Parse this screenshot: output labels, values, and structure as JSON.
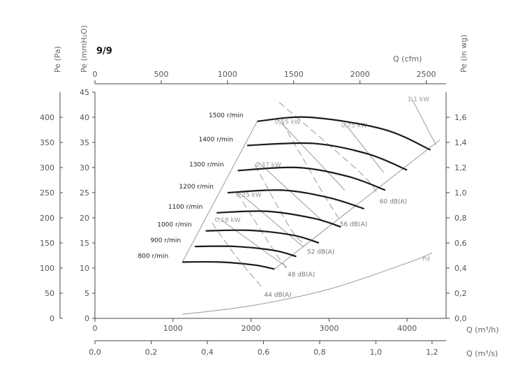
{
  "chart_data": {
    "type": "line",
    "title": "9/9",
    "axes": {
      "x_bottom1": {
        "label": "Q (m³/h)",
        "range": [
          0,
          4500
        ],
        "ticks": [
          "0",
          "1000",
          "2000",
          "3000",
          "4000"
        ]
      },
      "x_bottom2": {
        "label": "Q (m³/s)",
        "range": [
          0,
          1.25
        ],
        "ticks": [
          "0,0",
          "0,2",
          "0,4",
          "0,6",
          "0,8",
          "1,0",
          "1,2"
        ]
      },
      "x_top": {
        "label": "Q (cfm)",
        "range": [
          0,
          2650
        ],
        "ticks": [
          "0",
          "500",
          "1000",
          "1500",
          "2000",
          "2500"
        ]
      },
      "y_left_outer": {
        "label": "Pe (Pa)",
        "range": [
          0,
          450
        ],
        "ticks": [
          "0",
          "50",
          "100",
          "150",
          "200",
          "250",
          "300",
          "350",
          "400"
        ]
      },
      "y_left_inner": {
        "label": "Pe (mmH₂O)",
        "range": [
          0,
          45
        ],
        "ticks": [
          "0",
          "5",
          "10",
          "15",
          "20",
          "25",
          "30",
          "35",
          "40",
          "45"
        ]
      },
      "y_right": {
        "label": "Pe (in wg)",
        "range": [
          0,
          1.8
        ],
        "ticks": [
          "0,0",
          "0,2",
          "0,4",
          "0,6",
          "0,8",
          "1,0",
          "1,2",
          "1,4",
          "1,6"
        ]
      }
    },
    "speed_curves": [
      {
        "name": "800 r/min",
        "points": [
          [
            1120,
            11.2
          ],
          [
            1600,
            11.2
          ],
          [
            2050,
            10.6
          ],
          [
            2300,
            9.8
          ]
        ]
      },
      {
        "name": "900 r/min",
        "points": [
          [
            1280,
            14.3
          ],
          [
            1800,
            14.3
          ],
          [
            2300,
            13.5
          ],
          [
            2580,
            12.3
          ]
        ]
      },
      {
        "name": "1000 r/min",
        "points": [
          [
            1420,
            17.4
          ],
          [
            2000,
            17.5
          ],
          [
            2550,
            16.5
          ],
          [
            2870,
            15.0
          ]
        ]
      },
      {
        "name": "1100 r/min",
        "points": [
          [
            1560,
            21.0
          ],
          [
            2200,
            21.3
          ],
          [
            2800,
            19.9
          ],
          [
            3150,
            18.2
          ]
        ]
      },
      {
        "name": "1200 r/min",
        "points": [
          [
            1700,
            25.0
          ],
          [
            2400,
            25.5
          ],
          [
            3000,
            24.0
          ],
          [
            3450,
            21.8
          ]
        ]
      },
      {
        "name": "1300 r/min",
        "points": [
          [
            1830,
            29.4
          ],
          [
            2600,
            30.0
          ],
          [
            3250,
            28.2
          ],
          [
            3720,
            25.5
          ]
        ]
      },
      {
        "name": "1400 r/min",
        "points": [
          [
            1950,
            34.4
          ],
          [
            2800,
            34.8
          ],
          [
            3500,
            32.7
          ],
          [
            4000,
            29.5
          ]
        ]
      },
      {
        "name": "1500 r/min",
        "points": [
          [
            2080,
            39.2
          ],
          [
            2750,
            40.0
          ],
          [
            3700,
            37.6
          ],
          [
            4300,
            33.5
          ]
        ]
      }
    ],
    "power_lines": [
      {
        "name": "0,18 kW",
        "points": [
          [
            1580,
            20.0
          ],
          [
            2250,
            12.5
          ],
          [
            2460,
            10.2
          ]
        ]
      },
      {
        "name": "0,25 kW",
        "points": [
          [
            1850,
            25.0
          ],
          [
            2550,
            15.8
          ],
          [
            2680,
            14.2
          ]
        ]
      },
      {
        "name": "0,37 kW",
        "points": [
          [
            2100,
            31.0
          ],
          [
            2800,
            21.0
          ],
          [
            2930,
            19.2
          ]
        ]
      },
      {
        "name": "0,55 kW",
        "points": [
          [
            2350,
            39.5
          ],
          [
            3050,
            28.0
          ],
          [
            3200,
            25.5
          ]
        ]
      },
      {
        "name": "0,75 kW",
        "points": [
          [
            3200,
            38.8
          ],
          [
            3700,
            29.0
          ]
        ]
      },
      {
        "name": "1,1 kW",
        "points": [
          [
            4050,
            44.0
          ],
          [
            4370,
            34.5
          ]
        ]
      }
    ],
    "sound_lines": [
      {
        "name": "44 dB(A)",
        "points": [
          [
            1500,
            19.0
          ],
          [
            1800,
            12.5
          ],
          [
            2150,
            6.0
          ]
        ]
      },
      {
        "name": "48 dB(A)",
        "points": [
          [
            1820,
            25.0
          ],
          [
            2250,
            14.5
          ],
          [
            2450,
            10.0
          ]
        ]
      },
      {
        "name": "52 dB(A)",
        "points": [
          [
            2050,
            30.5
          ],
          [
            2500,
            18.0
          ],
          [
            2700,
            14.5
          ]
        ]
      },
      {
        "name": "56 dB(A)",
        "points": [
          [
            2400,
            39.0
          ],
          [
            2900,
            25.5
          ],
          [
            3120,
            20.0
          ]
        ]
      },
      {
        "name": "60 dB(A)",
        "points": [
          [
            2360,
            43.0
          ],
          [
            3400,
            29.0
          ],
          [
            3630,
            24.5
          ]
        ]
      }
    ],
    "boundaries": {
      "left": [
        [
          1120,
          11.2
        ],
        [
          2080,
          39.2
        ]
      ],
      "right": [
        [
          2300,
          9.8
        ],
        [
          4420,
          35.5
        ]
      ]
    },
    "pd_curve": {
      "name": "Pd",
      "points": [
        [
          1120,
          0.8
        ],
        [
          2000,
          2.5
        ],
        [
          3000,
          5.8
        ],
        [
          4000,
          11.0
        ],
        [
          4320,
          13.0
        ]
      ]
    },
    "colors": {
      "speed": "#1a1a1a",
      "thin": "#999999",
      "axis": "#444444"
    }
  }
}
